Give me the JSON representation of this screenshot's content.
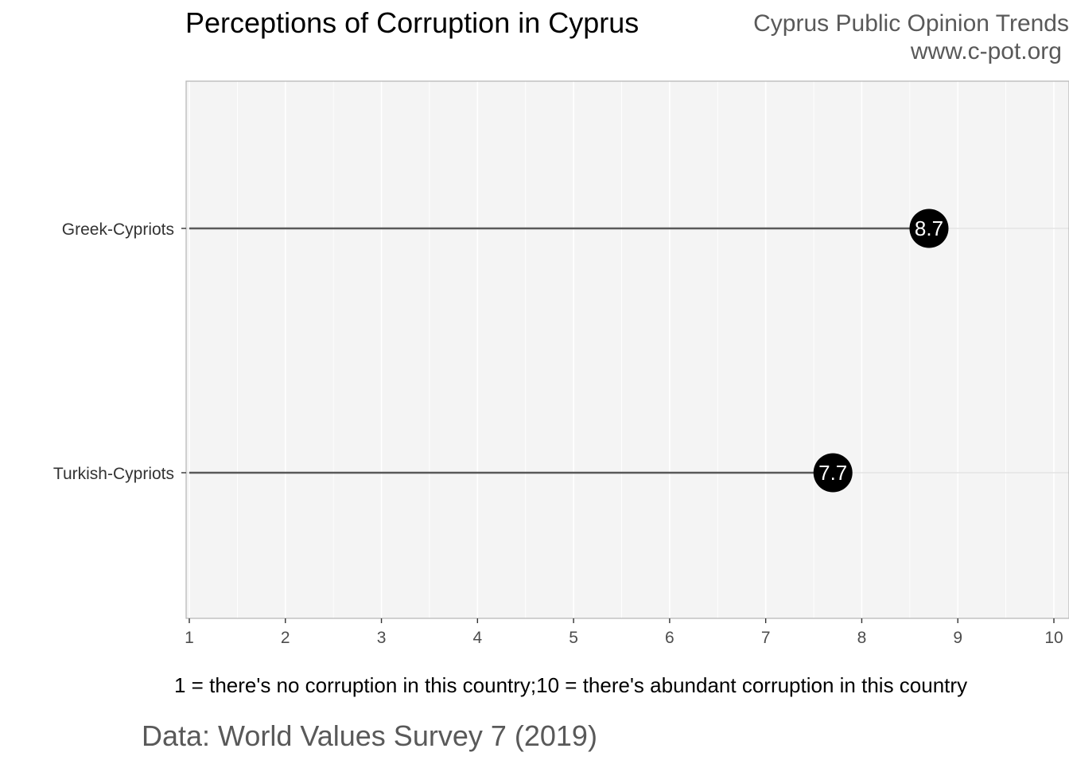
{
  "header": {
    "title": "Perceptions of Corruption in Cyprus",
    "brand_line1": "Cyprus Public Opinion Trends",
    "brand_line2": "www.c-pot.org"
  },
  "caption": "Data: World Values Survey 7 (2019)",
  "colors": {
    "panel": "#f4f4f4",
    "grid": "#ffffff",
    "segment": "#595959",
    "point": "#000000",
    "point_label": "#ffffff"
  },
  "chart_data": {
    "type": "lollipop",
    "title": "Perceptions of Corruption in Cyprus",
    "xlabel": "1 = there's no corruption in this country;10 = there's abundant corruption in this country",
    "ylabel": "",
    "xlim": [
      1,
      10
    ],
    "x_ticks": [
      1,
      2,
      3,
      4,
      5,
      6,
      7,
      8,
      9,
      10
    ],
    "categories": [
      "Greek-Cypriots",
      "Turkish-Cypriots"
    ],
    "values": [
      8.7,
      7.7
    ],
    "value_labels": [
      "8.7",
      "7.7"
    ],
    "grid": true
  }
}
